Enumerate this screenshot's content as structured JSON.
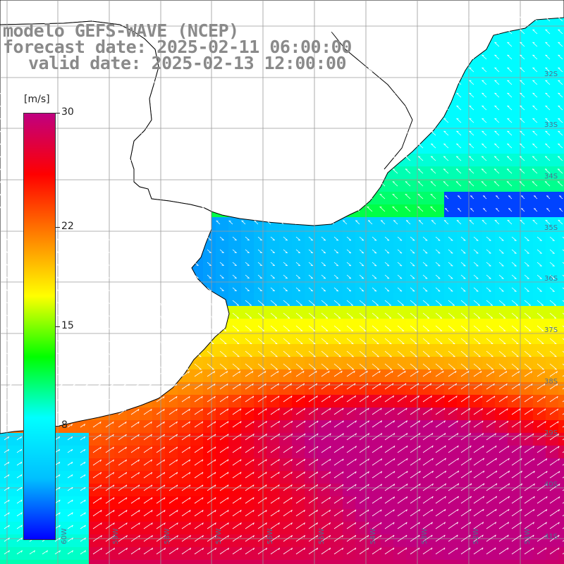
{
  "title": {
    "line1": "modelo GEFS-WAVE (NCEP)",
    "line2": "forecast date: 2025-02-11 06:00:00",
    "line3": "valid date: 2025-02-13 12:00:00"
  },
  "colorbar": {
    "unit": "[m/s]",
    "ticks": [
      "30",
      "22",
      "15",
      "8"
    ],
    "tick_values": [
      30,
      22,
      15,
      8
    ],
    "range": [
      0,
      30
    ],
    "colors": [
      "#0000ff",
      "#00c0ff",
      "#00ffff",
      "#00ff00",
      "#ffff00",
      "#ff8000",
      "#ff0000",
      "#c00080"
    ]
  },
  "map": {
    "lat_labels": [
      "32S",
      "33S",
      "34S",
      "35S",
      "36S",
      "37S",
      "38S",
      "39S",
      "40S",
      "41S"
    ],
    "lon_labels": [
      "60W",
      "59W",
      "58W",
      "57W",
      "56W",
      "55W",
      "54W",
      "53W",
      "52W",
      "51W"
    ],
    "land_color": "#ffffff",
    "grid_color": "#9a9a9a"
  }
}
